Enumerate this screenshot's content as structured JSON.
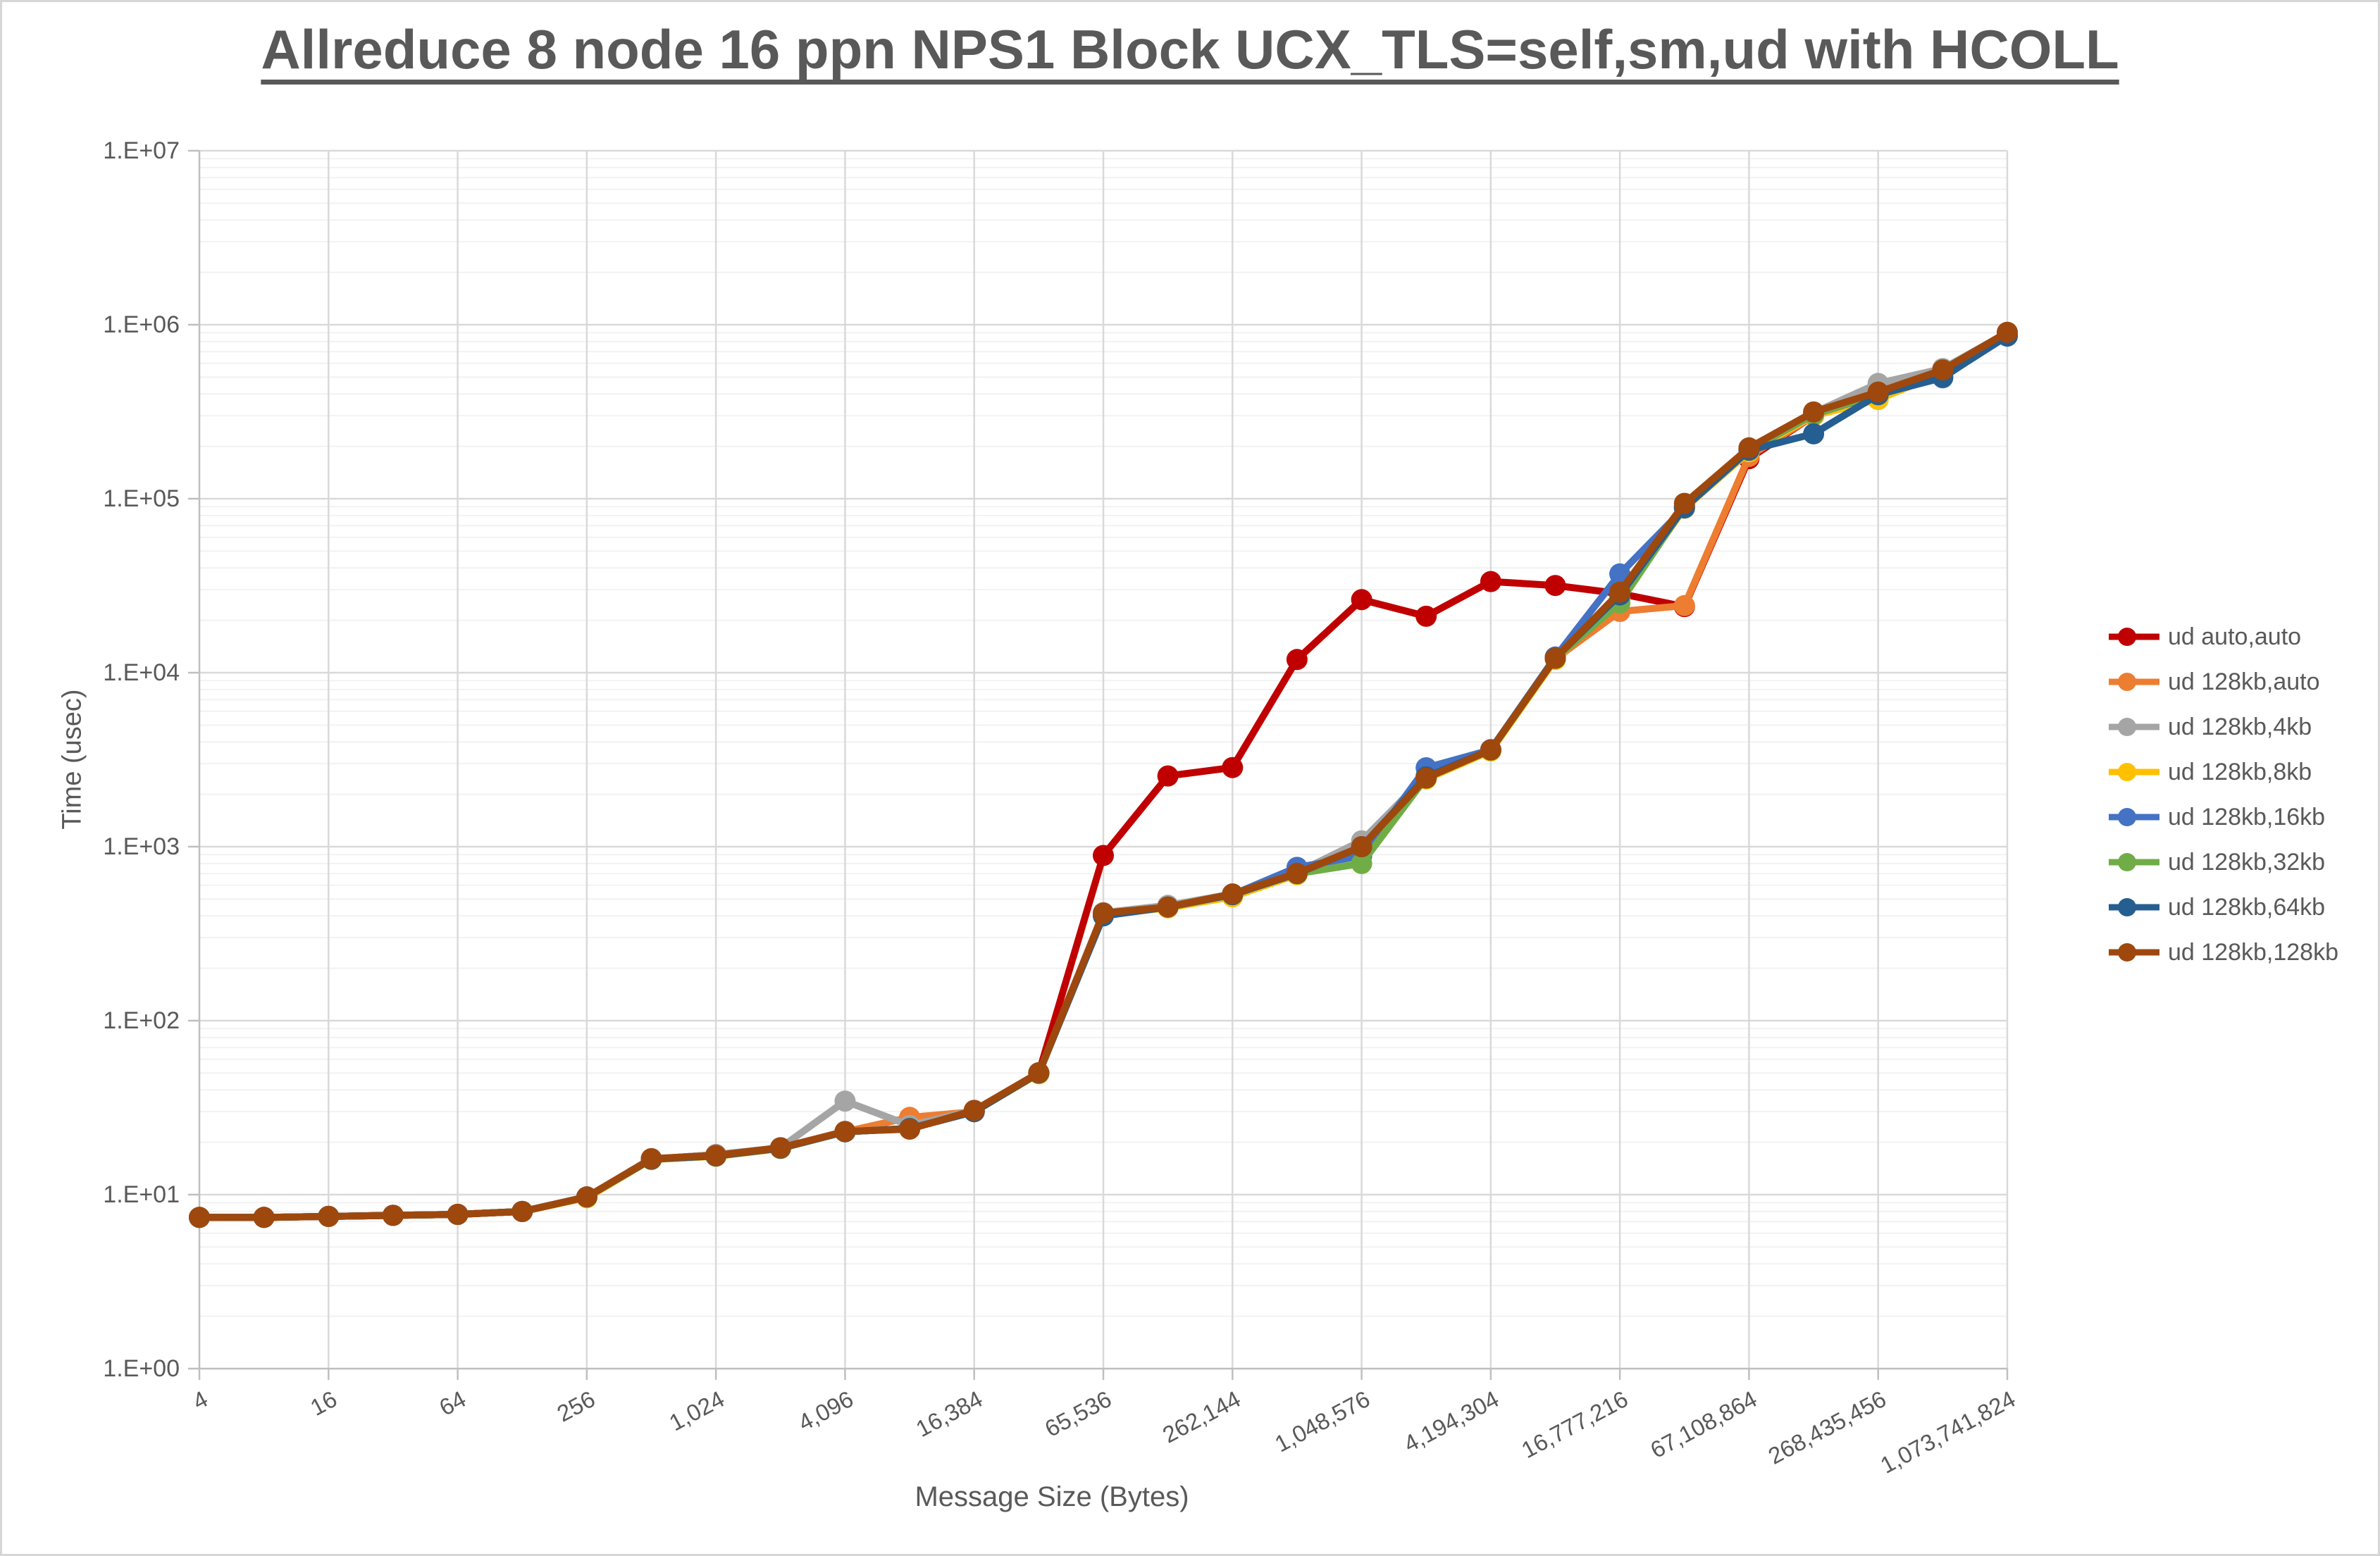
{
  "title": "Allreduce 8 node 16 ppn NPS1 Block UCX_TLS=self,sm,ud with HCOLL",
  "axes": {
    "y_title": "Time (usec)",
    "x_title": "Message Size (Bytes)",
    "y_tick_labels": [
      "1.E+00",
      "1.E+01",
      "1.E+02",
      "1.E+03",
      "1.E+04",
      "1.E+05",
      "1.E+06",
      "1.E+07"
    ],
    "x_tick_labels": [
      "4",
      "16",
      "64",
      "256",
      "1,024",
      "4,096",
      "16,384",
      "65,536",
      "262,144",
      "1,048,576",
      "4,194,304",
      "16,777,216",
      "67,108,864",
      "268,435,456",
      "1,073,741,824"
    ]
  },
  "chart_data": {
    "type": "line",
    "title": "Allreduce 8 node 16 ppn NPS1 Block UCX_TLS=self,sm,ud with HCOLL",
    "xlabel": "Message Size (Bytes)",
    "ylabel": "Time (usec)",
    "x_scale": "log2-category",
    "y_scale": "log10",
    "ylim": [
      1,
      10000000
    ],
    "grid": "major-and-log-minor",
    "legend_position": "right",
    "x_categories": [
      4,
      8,
      16,
      32,
      64,
      128,
      256,
      512,
      1024,
      2048,
      4096,
      8192,
      16384,
      32768,
      65536,
      131072,
      262144,
      524288,
      1048576,
      2097152,
      4194304,
      8388608,
      16777216,
      33554432,
      67108864,
      134217728,
      268435456,
      536870912,
      1073741824
    ],
    "series": [
      {
        "name": "ud auto,auto",
        "color": "#C00000",
        "values": [
          7.4,
          7.4,
          7.5,
          7.6,
          7.7,
          8.0,
          9.7,
          16,
          17,
          18.5,
          23,
          24,
          30,
          50,
          890,
          2550,
          2850,
          11900,
          26300,
          21100,
          33400,
          31700,
          28500,
          24000,
          170000,
          300000,
          400000,
          540000,
          880000
        ]
      },
      {
        "name": "ud 128kb,auto",
        "color": "#ED7D31",
        "values": [
          7.4,
          7.4,
          7.5,
          7.6,
          7.7,
          8.0,
          9.7,
          16,
          17,
          18.5,
          23,
          27.8,
          30,
          50,
          410,
          448,
          528,
          700,
          990,
          2480,
          3580,
          12000,
          22500,
          24300,
          175000,
          300000,
          400000,
          540000,
          875000
        ]
      },
      {
        "name": "ud 128kb,4kb",
        "color": "#A5A5A5",
        "values": [
          7.4,
          7.4,
          7.5,
          7.6,
          7.7,
          8.0,
          9.7,
          16,
          17,
          18.6,
          34.5,
          25,
          30.5,
          50,
          418,
          460,
          535,
          710,
          1080,
          2560,
          3620,
          12300,
          27000,
          91000,
          192000,
          312000,
          460000,
          560000,
          900000
        ]
      },
      {
        "name": "ud 128kb,8kb",
        "color": "#FFC000",
        "values": [
          7.4,
          7.4,
          7.5,
          7.6,
          7.7,
          8.0,
          9.6,
          15.9,
          16.6,
          18.4,
          23,
          24,
          30,
          49.5,
          405,
          445,
          515,
          690,
          985,
          2450,
          3550,
          11900,
          26500,
          88000,
          186000,
          300000,
          372000,
          530000,
          865000
        ]
      },
      {
        "name": "ud 128kb,16kb",
        "color": "#4472C4",
        "values": [
          7.4,
          7.4,
          7.5,
          7.6,
          7.7,
          8.0,
          9.7,
          16,
          16.7,
          18.5,
          23,
          24,
          30,
          50,
          408,
          450,
          530,
          760,
          885,
          2840,
          3600,
          12300,
          37000,
          88500,
          190000,
          305000,
          398000,
          495000,
          878000
        ]
      },
      {
        "name": "ud 128kb,32kb",
        "color": "#70AD47",
        "values": [
          7.4,
          7.4,
          7.5,
          7.6,
          7.7,
          8.0,
          9.7,
          16,
          16.7,
          18.5,
          23,
          24,
          30,
          50,
          412,
          450,
          530,
          700,
          800,
          2500,
          3590,
          12100,
          25200,
          90000,
          191000,
          306000,
          402000,
          545000,
          868000
        ]
      },
      {
        "name": "ud 128kb,64kb",
        "color": "#255E91",
        "values": [
          7.4,
          7.4,
          7.5,
          7.6,
          7.7,
          8.0,
          9.7,
          16,
          16.7,
          18.5,
          23,
          24,
          30,
          50,
          400,
          450,
          530,
          700,
          1000,
          2520,
          3600,
          12150,
          28000,
          89000,
          190000,
          236000,
          396000,
          500000,
          860000
        ]
      },
      {
        "name": "ud 128kb,128kb",
        "color": "#9E480E",
        "values": [
          7.4,
          7.4,
          7.5,
          7.6,
          7.7,
          8.0,
          9.7,
          16.1,
          16.8,
          18.6,
          23.1,
          23.8,
          30.5,
          50.2,
          415,
          450,
          535,
          703,
          1000,
          2480,
          3600,
          12100,
          29000,
          94000,
          196000,
          315000,
          410000,
          550000,
          905000
        ]
      }
    ]
  },
  "style_colors": {
    "text": "#595959",
    "axis_line": "#BFBFBF",
    "major_grid": "#D9D9D9",
    "minor_grid": "#F2F2F2"
  }
}
